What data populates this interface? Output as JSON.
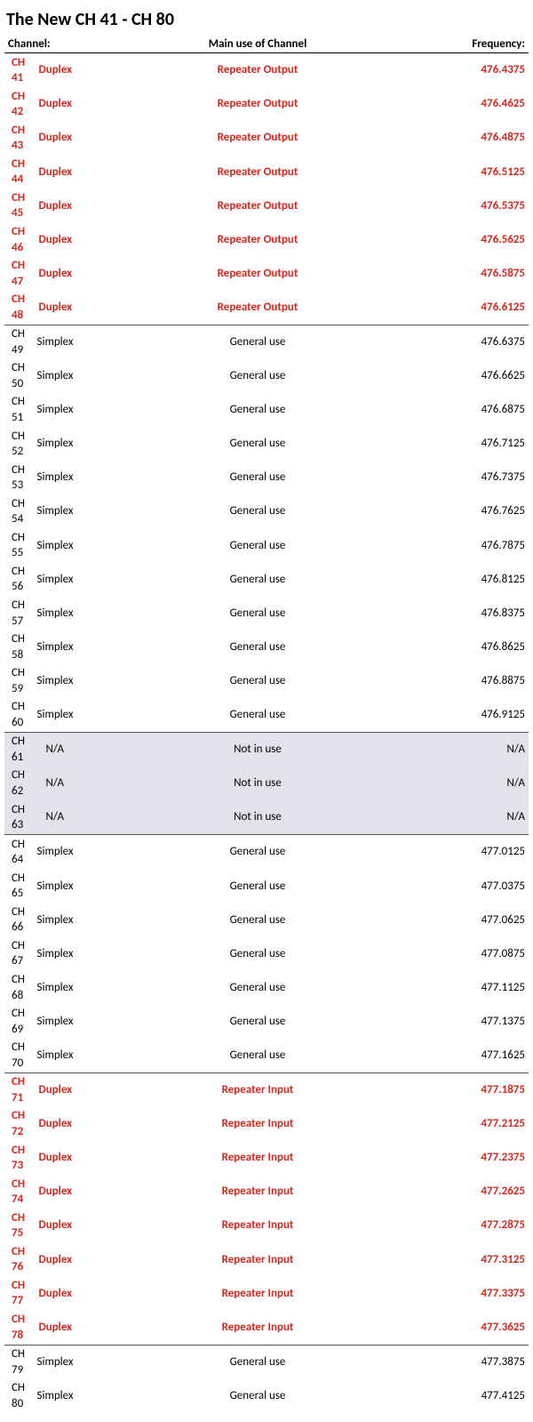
{
  "title": "The New CH 41 - CH 80",
  "headers": {
    "channel": "Channel:",
    "use": "Main use of Channel",
    "freq": "Frequency:"
  },
  "colors": {
    "red": "#d9261c",
    "black": "#000000",
    "gray_bg": "#e3e1ea",
    "border": "#555555"
  },
  "rows": [
    {
      "ch": "CH 41",
      "mode": "Duplex",
      "use": "Repeater Output",
      "freq": "476.4375",
      "style": "red",
      "sec_end": false
    },
    {
      "ch": "CH 42",
      "mode": "Duplex",
      "use": "Repeater Output",
      "freq": "476.4625",
      "style": "red",
      "sec_end": false
    },
    {
      "ch": "CH 43",
      "mode": "Duplex",
      "use": "Repeater Output",
      "freq": "476.4875",
      "style": "red",
      "sec_end": false
    },
    {
      "ch": "CH 44",
      "mode": "Duplex",
      "use": "Repeater Output",
      "freq": "476.5125",
      "style": "red",
      "sec_end": false
    },
    {
      "ch": "CH 45",
      "mode": "Duplex",
      "use": "Repeater Output",
      "freq": "476.5375",
      "style": "red",
      "sec_end": false
    },
    {
      "ch": "CH 46",
      "mode": "Duplex",
      "use": "Repeater Output",
      "freq": "476.5625",
      "style": "red",
      "sec_end": false
    },
    {
      "ch": "CH 47",
      "mode": "Duplex",
      "use": "Repeater Output",
      "freq": "476.5875",
      "style": "red",
      "sec_end": false
    },
    {
      "ch": "CH 48",
      "mode": "Duplex",
      "use": "Repeater Output",
      "freq": "476.6125",
      "style": "red",
      "sec_end": true
    },
    {
      "ch": "CH 49",
      "mode": "Simplex",
      "use": "General use",
      "freq": "476.6375",
      "style": "black",
      "sec_end": false
    },
    {
      "ch": "CH 50",
      "mode": "Simplex",
      "use": "General use",
      "freq": "476.6625",
      "style": "black",
      "sec_end": false
    },
    {
      "ch": "CH 51",
      "mode": "Simplex",
      "use": "General use",
      "freq": "476.6875",
      "style": "black",
      "sec_end": false
    },
    {
      "ch": "CH 52",
      "mode": "Simplex",
      "use": "General use",
      "freq": "476.7125",
      "style": "black",
      "sec_end": false
    },
    {
      "ch": "CH 53",
      "mode": "Simplex",
      "use": "General use",
      "freq": "476.7375",
      "style": "black",
      "sec_end": false
    },
    {
      "ch": "CH 54",
      "mode": "Simplex",
      "use": "General use",
      "freq": "476.7625",
      "style": "black",
      "sec_end": false
    },
    {
      "ch": "CH 55",
      "mode": "Simplex",
      "use": "General use",
      "freq": "476.7875",
      "style": "black",
      "sec_end": false
    },
    {
      "ch": "CH 56",
      "mode": "Simplex",
      "use": "General use",
      "freq": "476.8125",
      "style": "black",
      "sec_end": false
    },
    {
      "ch": "CH 57",
      "mode": "Simplex",
      "use": "General use",
      "freq": "476.8375",
      "style": "black",
      "sec_end": false
    },
    {
      "ch": "CH 58",
      "mode": "Simplex",
      "use": "General use",
      "freq": "476.8625",
      "style": "black",
      "sec_end": false
    },
    {
      "ch": "CH 59",
      "mode": "Simplex",
      "use": "General use",
      "freq": "476.8875",
      "style": "black",
      "sec_end": false
    },
    {
      "ch": "CH 60",
      "mode": "Simplex",
      "use": "General use",
      "freq": "476.9125",
      "style": "black",
      "sec_end": true
    },
    {
      "ch": "CH 61",
      "mode": "N/A",
      "use": "Not in use",
      "freq": "N/A",
      "style": "gray",
      "sec_end": false
    },
    {
      "ch": "CH 62",
      "mode": "N/A",
      "use": "Not in use",
      "freq": "N/A",
      "style": "gray",
      "sec_end": false
    },
    {
      "ch": "CH 63",
      "mode": "N/A",
      "use": "Not in use",
      "freq": "N/A",
      "style": "gray",
      "sec_end": true
    },
    {
      "ch": "CH 64",
      "mode": "Simplex",
      "use": "General use",
      "freq": "477.0125",
      "style": "black",
      "sec_end": false
    },
    {
      "ch": "CH 65",
      "mode": "Simplex",
      "use": "General use",
      "freq": "477.0375",
      "style": "black",
      "sec_end": false
    },
    {
      "ch": "CH 66",
      "mode": "Simplex",
      "use": "General use",
      "freq": "477.0625",
      "style": "black",
      "sec_end": false
    },
    {
      "ch": "CH 67",
      "mode": "Simplex",
      "use": "General use",
      "freq": "477.0875",
      "style": "black",
      "sec_end": false
    },
    {
      "ch": "CH 68",
      "mode": "Simplex",
      "use": "General use",
      "freq": "477.1125",
      "style": "black",
      "sec_end": false
    },
    {
      "ch": "CH 69",
      "mode": "Simplex",
      "use": "General use",
      "freq": "477.1375",
      "style": "black",
      "sec_end": false
    },
    {
      "ch": "CH 70",
      "mode": "Simplex",
      "use": "General use",
      "freq": "477.1625",
      "style": "black",
      "sec_end": true
    },
    {
      "ch": "CH 71",
      "mode": "Duplex",
      "use": "Repeater Input",
      "freq": "477.1875",
      "style": "red",
      "sec_end": false
    },
    {
      "ch": "CH 72",
      "mode": "Duplex",
      "use": "Repeater Input",
      "freq": "477.2125",
      "style": "red",
      "sec_end": false
    },
    {
      "ch": "CH 73",
      "mode": "Duplex",
      "use": "Repeater Input",
      "freq": "477.2375",
      "style": "red",
      "sec_end": false
    },
    {
      "ch": "CH 74",
      "mode": "Duplex",
      "use": "Repeater Input",
      "freq": "477.2625",
      "style": "red",
      "sec_end": false
    },
    {
      "ch": "CH 75",
      "mode": "Duplex",
      "use": "Repeater Input",
      "freq": "477.2875",
      "style": "red",
      "sec_end": false
    },
    {
      "ch": "CH 76",
      "mode": "Duplex",
      "use": "Repeater Input",
      "freq": "477.3125",
      "style": "red",
      "sec_end": false
    },
    {
      "ch": "CH 77",
      "mode": "Duplex",
      "use": "Repeater Input",
      "freq": "477.3375",
      "style": "red",
      "sec_end": false
    },
    {
      "ch": "CH 78",
      "mode": "Duplex",
      "use": "Repeater Input",
      "freq": "477.3625",
      "style": "red",
      "sec_end": true
    },
    {
      "ch": "CH 79",
      "mode": "Simplex",
      "use": "General use",
      "freq": "477.3875",
      "style": "black",
      "sec_end": false
    },
    {
      "ch": "CH 80",
      "mode": "Simplex",
      "use": "General use",
      "freq": "477.4125",
      "style": "black",
      "sec_end": false
    }
  ]
}
